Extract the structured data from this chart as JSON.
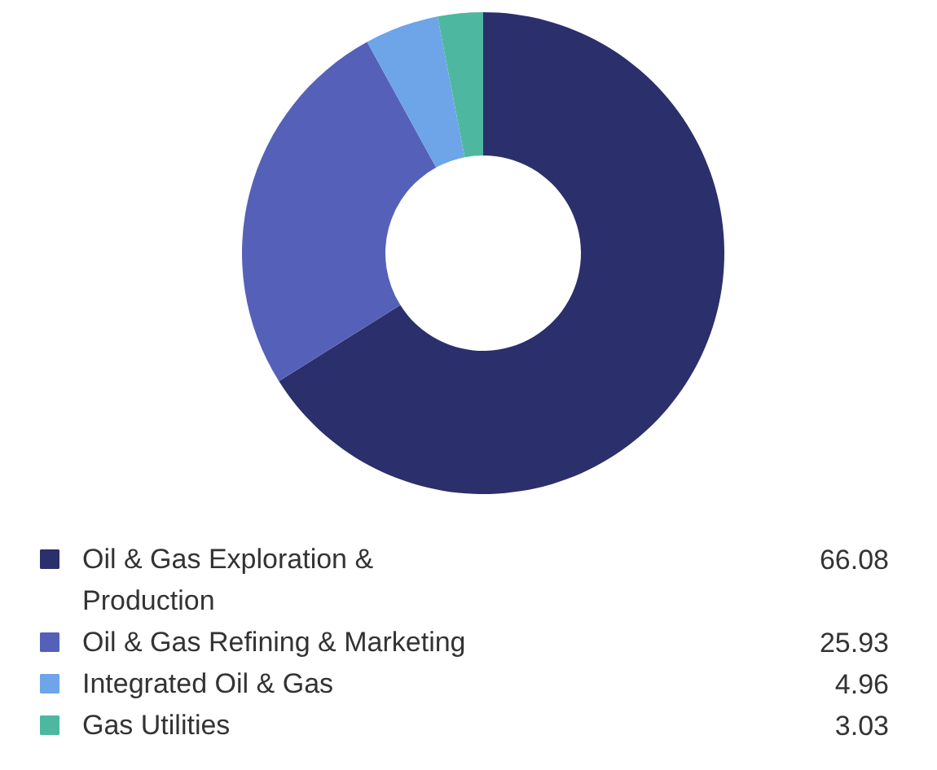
{
  "chart_data": {
    "type": "donut",
    "categories": [
      "Oil & Gas Exploration & Production",
      "Oil & Gas Refining & Marketing",
      "Integrated Oil & Gas",
      "Gas Utilities"
    ],
    "values": [
      66.08,
      25.93,
      4.96,
      3.03
    ],
    "colors": [
      "#2b2f6b",
      "#5561b8",
      "#6ea4e8",
      "#4db89f"
    ],
    "data_labels": true,
    "legend": "bottom"
  }
}
